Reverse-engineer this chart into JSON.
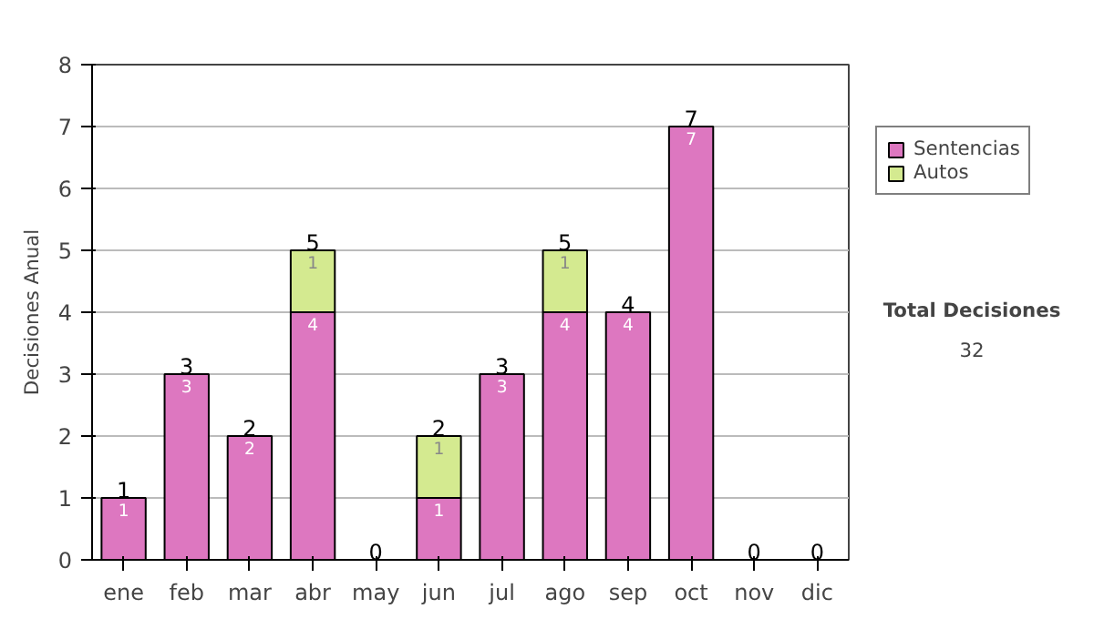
{
  "chart_data": {
    "type": "bar",
    "stacked": true,
    "ylabel": "Decisiones Anual",
    "categories": [
      "ene",
      "feb",
      "mar",
      "abr",
      "may",
      "jun",
      "jul",
      "ago",
      "sep",
      "oct",
      "nov",
      "dic"
    ],
    "series": [
      {
        "name": "Sentencias",
        "color": "#dd77c0",
        "values": [
          1,
          3,
          2,
          4,
          0,
          1,
          3,
          4,
          4,
          7,
          0,
          0
        ],
        "value_labels": [
          "1",
          "3",
          "2",
          "4",
          null,
          "1",
          "3",
          "4",
          "4",
          "7",
          null,
          null
        ]
      },
      {
        "name": "Autos",
        "color": "#d4ea90",
        "values": [
          0,
          0,
          0,
          1,
          0,
          1,
          0,
          1,
          0,
          0,
          0,
          0
        ],
        "value_labels": [
          null,
          null,
          null,
          "1",
          null,
          "1",
          null,
          "1",
          null,
          null,
          null,
          null
        ]
      }
    ],
    "totals": [
      "1",
      "3",
      "2",
      "5",
      "0",
      "2",
      "3",
      "5",
      "4",
      "7",
      "0",
      "0"
    ],
    "ylim": [
      0,
      8
    ],
    "yticks": [
      0,
      1,
      2,
      3,
      4,
      5,
      6,
      7,
      8
    ],
    "grid": "y",
    "legend": "right",
    "annotations": [
      "Total Decisiones",
      "32"
    ]
  }
}
